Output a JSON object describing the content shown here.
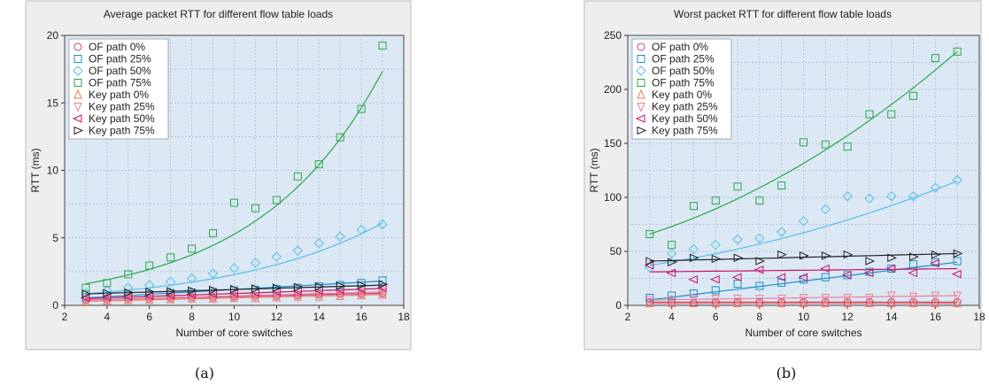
{
  "chart_data": [
    {
      "type": "scatter",
      "caption": "(a)",
      "title": "Average packet RTT for different flow table loads",
      "xlabel": "Number of core switches",
      "ylabel": "RTT (ms)",
      "xlim": [
        2,
        18
      ],
      "ylim": [
        0,
        20
      ],
      "xticks": [
        2,
        4,
        6,
        8,
        10,
        12,
        14,
        16,
        18
      ],
      "yticks": [
        0,
        5,
        10,
        15,
        20
      ],
      "grid": true,
      "legend_position": "top-left",
      "x": [
        3,
        4,
        5,
        6,
        7,
        8,
        9,
        10,
        11,
        12,
        13,
        14,
        15,
        16,
        17
      ],
      "series": [
        {
          "name": "OF path 0%",
          "marker": "circle",
          "color": "#c0407a",
          "values": [
            0.4,
            0.45,
            0.5,
            0.5,
            0.55,
            0.6,
            0.6,
            0.65,
            0.7,
            0.7,
            0.75,
            0.8,
            0.85,
            0.85,
            0.9
          ],
          "fit": [
            0.4,
            0.9
          ]
        },
        {
          "name": "OF path 25%",
          "marker": "square",
          "color": "#1a8fc8",
          "values": [
            0.6,
            0.7,
            0.75,
            0.8,
            0.9,
            0.95,
            1.0,
            1.1,
            1.15,
            1.2,
            1.3,
            1.4,
            1.5,
            1.65,
            1.85
          ],
          "fit": [
            0.55,
            1.8
          ]
        },
        {
          "name": "OF path 50%",
          "marker": "diamond",
          "color": "#55c0ea",
          "values": [
            0.9,
            1.1,
            1.3,
            1.5,
            1.75,
            2.0,
            2.35,
            2.75,
            3.15,
            3.6,
            4.05,
            4.6,
            5.1,
            5.6,
            6.0
          ],
          "fit": [
            0.85,
            6.1
          ]
        },
        {
          "name": "OF path 75%",
          "marker": "square",
          "color": "#2aa84a",
          "values": [
            1.3,
            1.65,
            2.3,
            2.95,
            3.55,
            4.2,
            5.35,
            7.6,
            7.2,
            7.8,
            9.55,
            10.45,
            12.45,
            14.55,
            19.25
          ],
          "fit": [
            1.6,
            17.35
          ]
        },
        {
          "name": "Key path 0%",
          "marker": "triangle-up",
          "color": "#f07a5a",
          "values": [
            0.3,
            0.35,
            0.4,
            0.4,
            0.45,
            0.5,
            0.5,
            0.55,
            0.55,
            0.6,
            0.65,
            0.65,
            0.7,
            0.75,
            0.8
          ],
          "fit": [
            0.3,
            0.8
          ]
        },
        {
          "name": "Key path 25%",
          "marker": "triangle-down",
          "color": "#f0809a",
          "values": [
            0.45,
            0.5,
            0.55,
            0.55,
            0.6,
            0.6,
            0.65,
            0.7,
            0.7,
            0.75,
            0.8,
            0.85,
            0.9,
            0.95,
            1.0
          ],
          "fit": [
            0.4,
            1.0
          ]
        },
        {
          "name": "Key path 50%",
          "marker": "triangle-left",
          "color": "#c8106a",
          "values": [
            0.55,
            0.6,
            0.65,
            0.7,
            0.75,
            0.8,
            0.85,
            0.9,
            0.95,
            1.0,
            1.05,
            1.1,
            1.15,
            1.2,
            1.3
          ],
          "fit": [
            0.5,
            1.25
          ]
        },
        {
          "name": "Key path 75%",
          "marker": "triangle-right",
          "color": "#222222",
          "values": [
            0.85,
            0.9,
            0.95,
            1.0,
            1.05,
            1.1,
            1.15,
            1.2,
            1.25,
            1.3,
            1.35,
            1.4,
            1.45,
            1.5,
            1.55
          ],
          "fit": [
            0.85,
            1.5
          ]
        }
      ]
    },
    {
      "type": "scatter",
      "caption": "(b)",
      "title": "Worst packet RTT for different flow table loads",
      "xlabel": "Number of core switches",
      "ylabel": "RTT (ms)",
      "xlim": [
        2,
        18
      ],
      "ylim": [
        0,
        250
      ],
      "xticks": [
        2,
        4,
        6,
        8,
        10,
        12,
        14,
        16,
        18
      ],
      "yticks": [
        0,
        50,
        100,
        150,
        200,
        250
      ],
      "grid": true,
      "legend_position": "top-left",
      "x": [
        3,
        4,
        5,
        6,
        7,
        8,
        9,
        10,
        11,
        12,
        13,
        14,
        15,
        16,
        17
      ],
      "series": [
        {
          "name": "OF path 0%",
          "marker": "circle",
          "color": "#c0407a",
          "values": [
            3,
            3,
            2,
            3,
            3,
            3,
            3,
            3,
            3,
            3,
            3,
            3,
            3,
            3,
            3
          ],
          "fit": [
            3,
            3
          ]
        },
        {
          "name": "OF path 25%",
          "marker": "square",
          "color": "#1a8fc8",
          "values": [
            7,
            9,
            11,
            14,
            20,
            18,
            21,
            24,
            26,
            28,
            31,
            34,
            38,
            40,
            41
          ],
          "fit": [
            5,
            40
          ]
        },
        {
          "name": "OF path 50%",
          "marker": "diamond",
          "color": "#55c0ea",
          "values": [
            35,
            48,
            52,
            56,
            61,
            62,
            68,
            78,
            89,
            101,
            99,
            101,
            101,
            109,
            116
          ],
          "fit": [
            37,
            115
          ]
        },
        {
          "name": "OF path 75%",
          "marker": "square",
          "color": "#2aa84a",
          "values": [
            66,
            56,
            92,
            97,
            110,
            97,
            111,
            151,
            149,
            147,
            177,
            177,
            194,
            229,
            235
          ],
          "fit": [
            66,
            235
          ]
        },
        {
          "name": "Key path 0%",
          "marker": "triangle-up",
          "color": "#f07a5a",
          "values": [
            2,
            2,
            2,
            2,
            2,
            2,
            2,
            2,
            2,
            2,
            2,
            2,
            2,
            2,
            2
          ],
          "fit": [
            2,
            2
          ]
        },
        {
          "name": "Key path 25%",
          "marker": "triangle-down",
          "color": "#f0809a",
          "values": [
            5,
            5,
            6,
            6,
            6,
            6,
            6,
            7,
            7,
            7,
            7,
            9,
            8,
            9,
            9
          ],
          "fit": [
            5,
            9
          ]
        },
        {
          "name": "Key path 50%",
          "marker": "triangle-left",
          "color": "#c8106a",
          "values": [
            37,
            30,
            24,
            24,
            26,
            33,
            26,
            26,
            34,
            28,
            30,
            34,
            30,
            39,
            29
          ],
          "fit": [
            31,
            34
          ]
        },
        {
          "name": "Key path 75%",
          "marker": "triangle-right",
          "color": "#222222",
          "values": [
            41,
            40,
            44,
            43,
            44,
            41,
            47,
            46,
            46,
            47,
            41,
            44,
            45,
            47,
            48
          ],
          "fit": [
            41,
            48
          ]
        }
      ]
    }
  ]
}
